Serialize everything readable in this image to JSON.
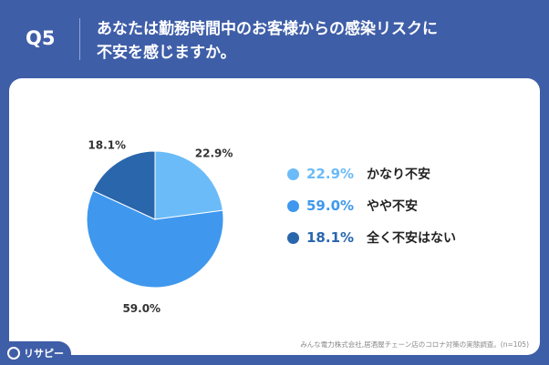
{
  "header": {
    "question_number": "Q5",
    "question_line1": "あなたは勤務時間中のお客様からの感染リスクに",
    "question_line2": "不安を感じますか。"
  },
  "chart_data": {
    "type": "pie",
    "title": "",
    "slices": [
      {
        "label": "かなり不安",
        "value": 22.9,
        "value_text": "22.9%",
        "color": "#6bbbf8"
      },
      {
        "label": "やや不安",
        "value": 59.0,
        "value_text": "59.0%",
        "color": "#3f98ee"
      },
      {
        "label": "全く不安はない",
        "value": 18.1,
        "value_text": "18.1%",
        "color": "#2966ac"
      }
    ],
    "start_angle": "12 o'clock",
    "direction": "clockwise",
    "legend_position": "right"
  },
  "footer": {
    "source": "みんな電力株式会社,居酒屋チェーン店のコロナ対策の実態調査。(n=105)",
    "brand": "リサピー"
  }
}
